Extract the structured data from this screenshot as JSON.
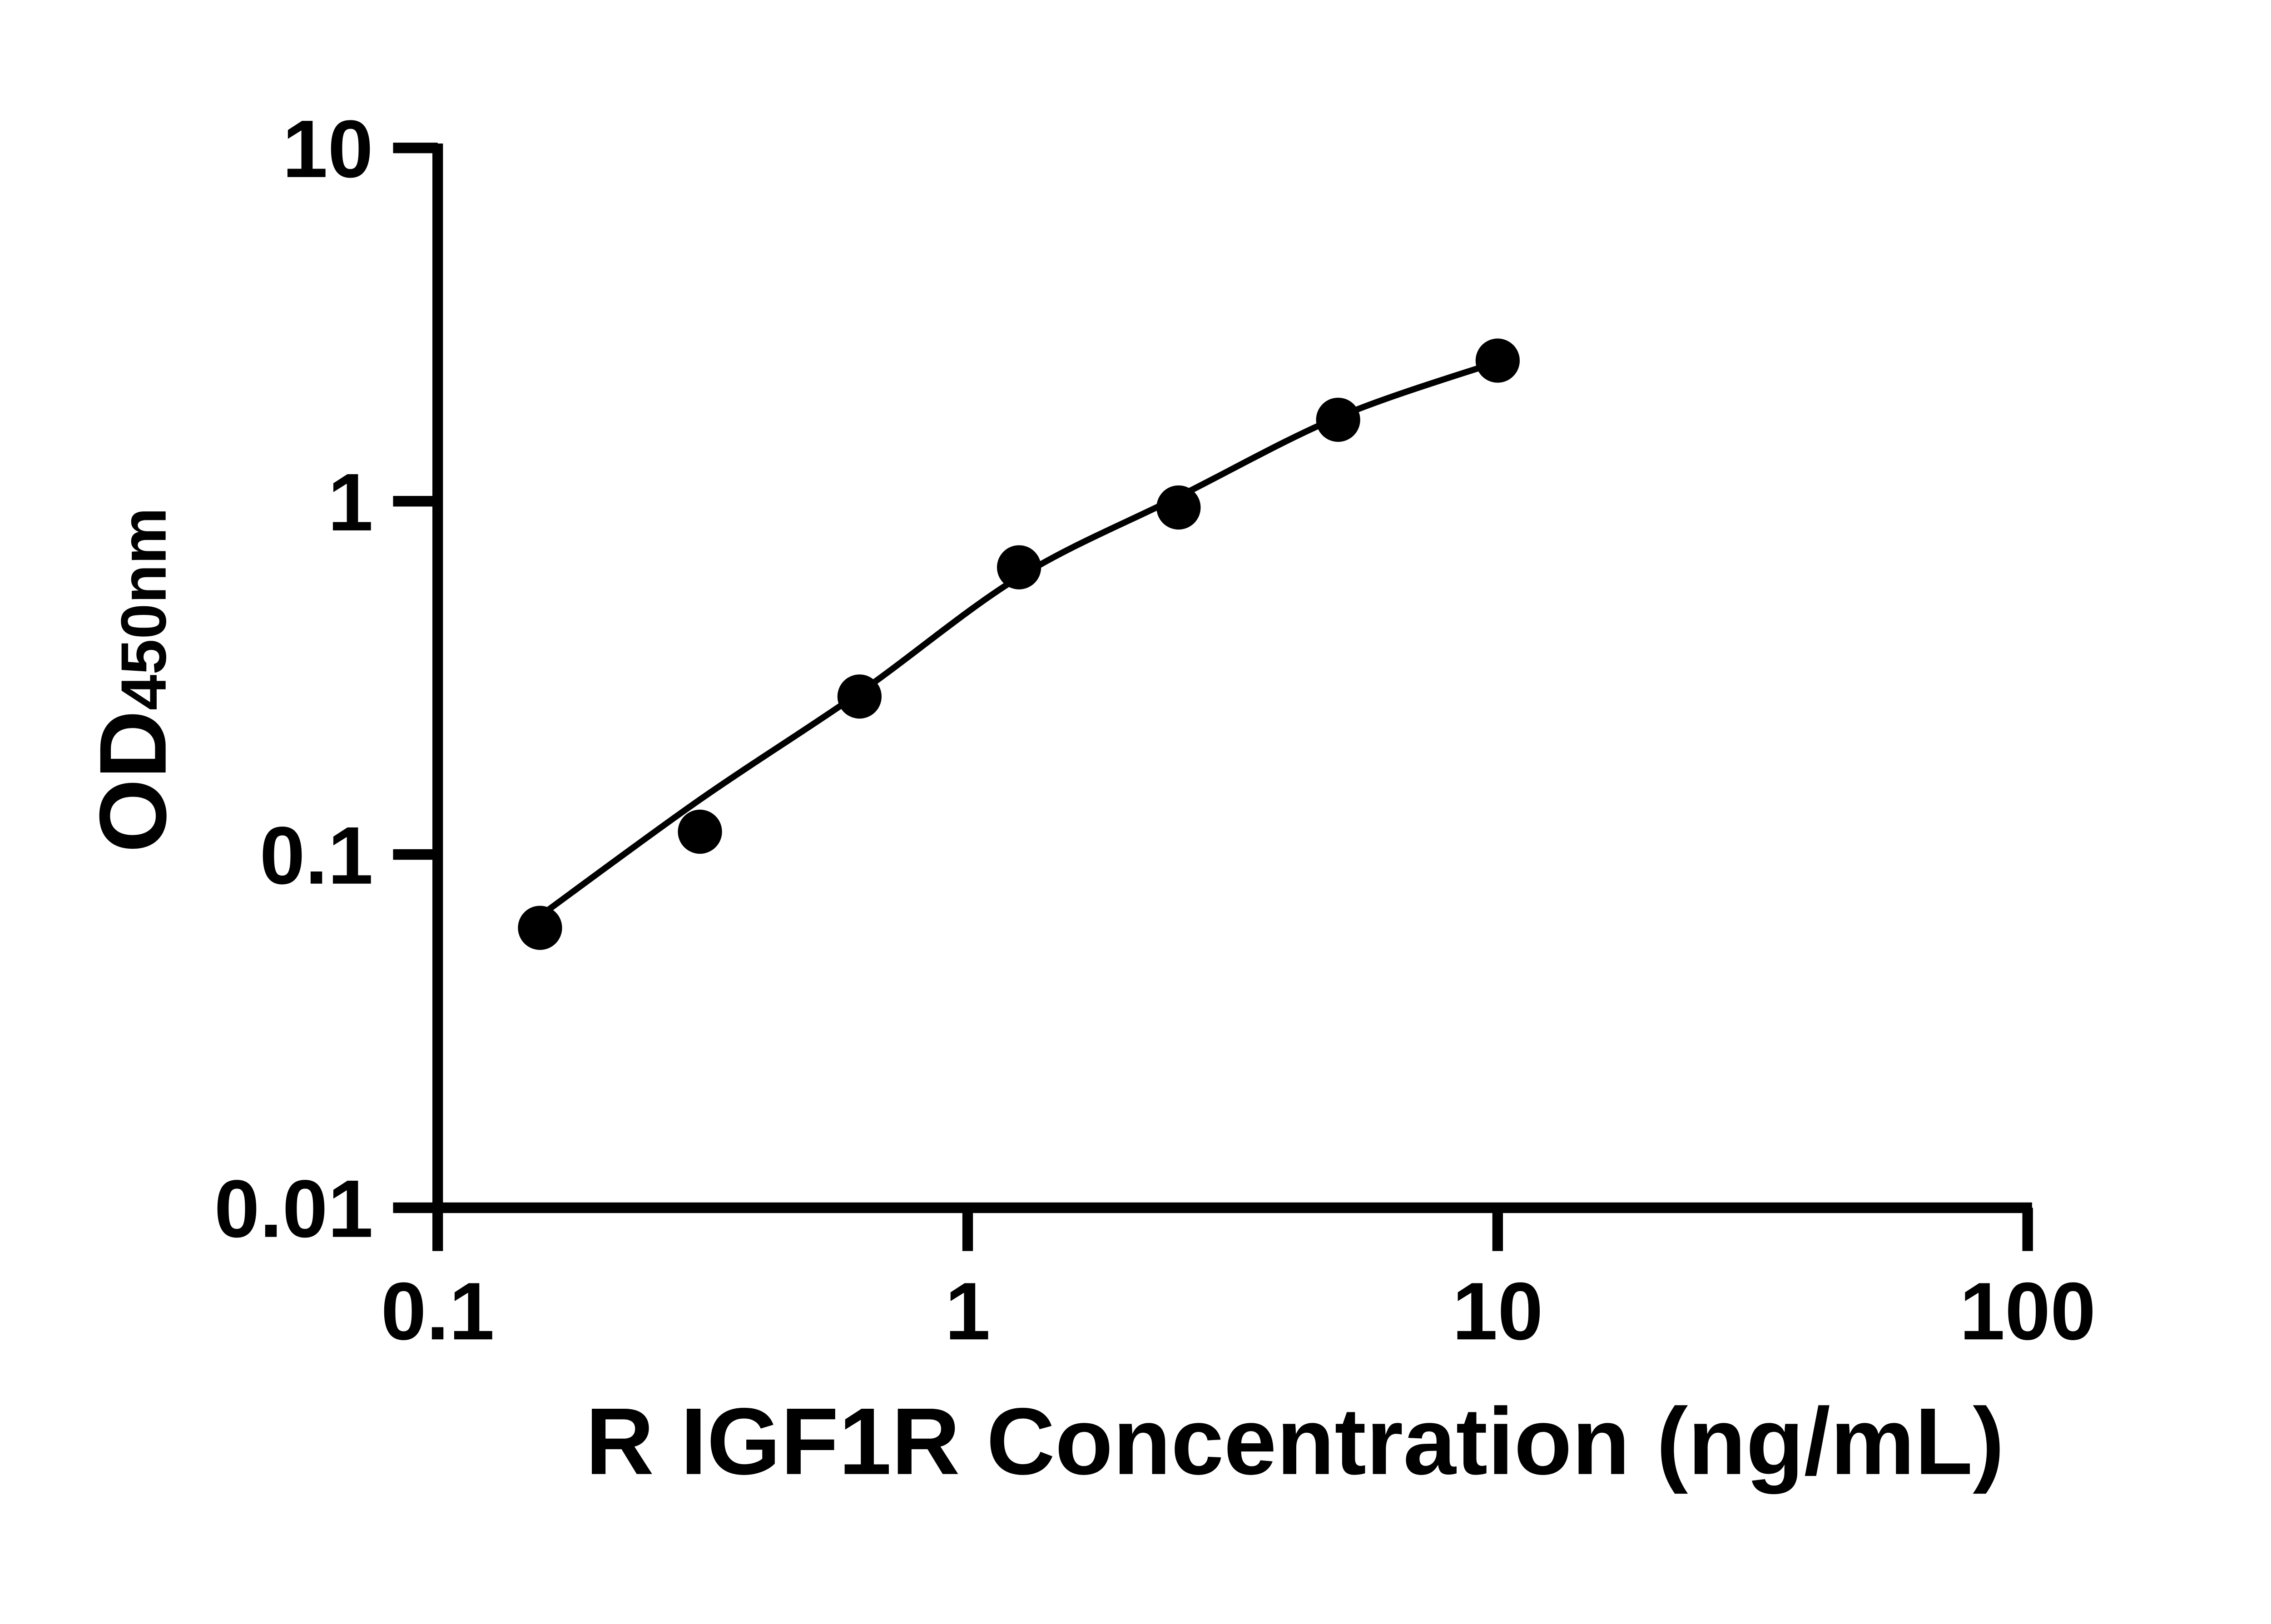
{
  "page": {
    "background_color": "#ffffff",
    "foreground_color": "#000000"
  },
  "chart_data": {
    "type": "scatter",
    "subtype": "elisa-standard-curve-with-fit-line",
    "title": "",
    "xlabel": "R IGF1R Concentration (ng/mL)",
    "ylabel": "OD",
    "ylabel_subscript": "450nm",
    "x_scale": "log10",
    "y_scale": "log10",
    "xlim": [
      0.1,
      100
    ],
    "ylim": [
      0.01,
      10
    ],
    "x_ticks": [
      0.1,
      1,
      10,
      100
    ],
    "x_tick_labels": [
      "0.1",
      "1",
      "10",
      "100"
    ],
    "y_ticks": [
      10,
      1,
      0.1,
      0.01
    ],
    "y_tick_labels": [
      "10",
      "1",
      "0.1",
      "0.01"
    ],
    "grid": false,
    "legend": null,
    "marker_shape": "filled-circle",
    "marker_color": "#000000",
    "curve_color": "#000000",
    "points": [
      {
        "x": 0.156,
        "y": 0.062
      },
      {
        "x": 0.3125,
        "y": 0.116
      },
      {
        "x": 0.625,
        "y": 0.28
      },
      {
        "x": 1.25,
        "y": 0.65
      },
      {
        "x": 2.5,
        "y": 0.96
      },
      {
        "x": 5,
        "y": 1.7
      },
      {
        "x": 10,
        "y": 2.5
      }
    ],
    "fit_curve": [
      {
        "x": 0.156,
        "y": 0.067
      },
      {
        "x": 0.3125,
        "y": 0.143
      },
      {
        "x": 0.625,
        "y": 0.287
      },
      {
        "x": 1.25,
        "y": 0.61
      },
      {
        "x": 2.5,
        "y": 1.03
      },
      {
        "x": 5,
        "y": 1.73
      },
      {
        "x": 10,
        "y": 2.48
      }
    ]
  }
}
